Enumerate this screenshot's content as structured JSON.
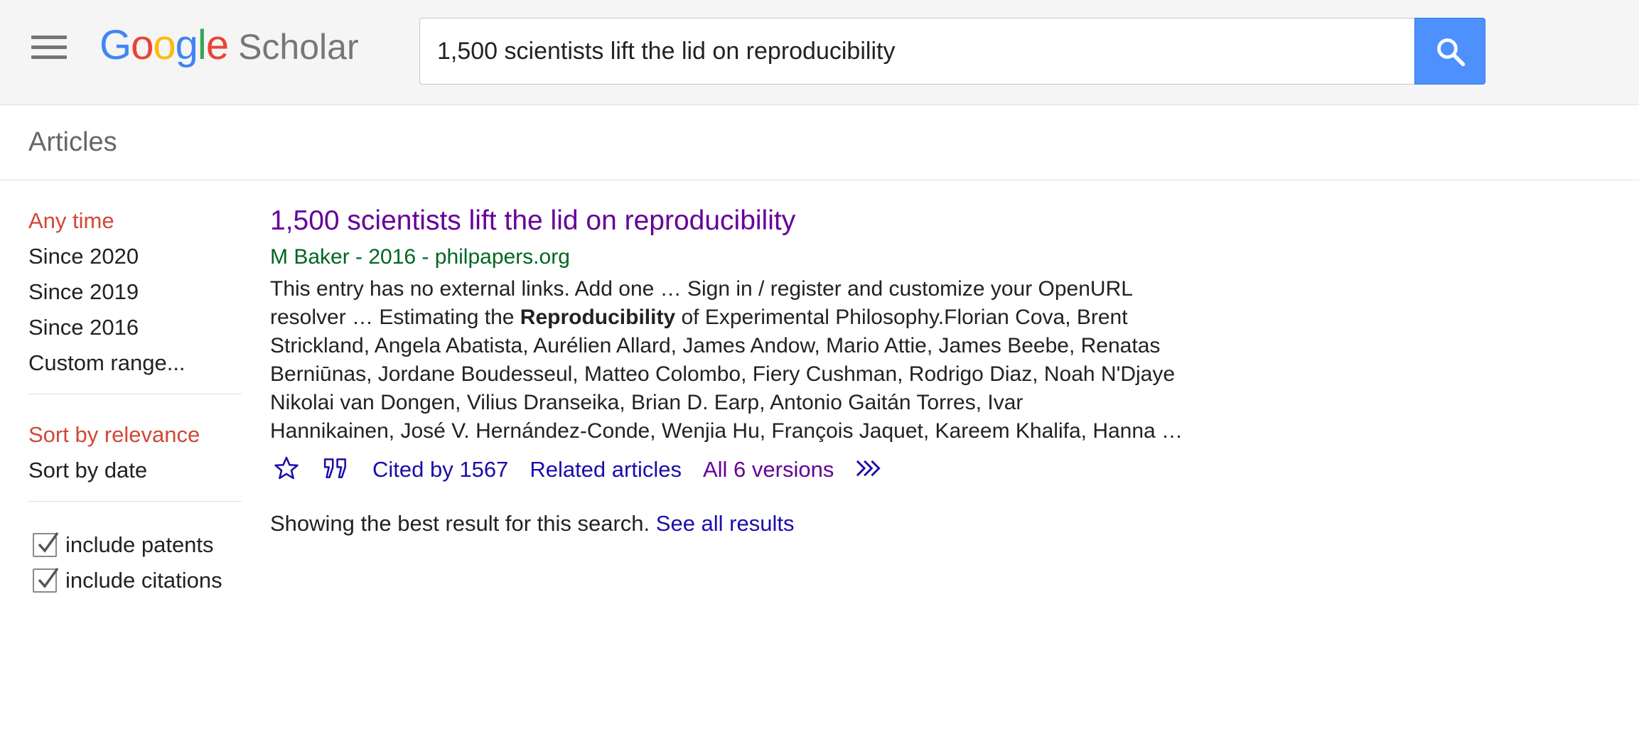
{
  "header": {
    "logo_letters": [
      "G",
      "o",
      "o",
      "g",
      "l",
      "e"
    ],
    "logo_colors": [
      "#4285F4",
      "#EA4335",
      "#FBBC05",
      "#4285F4",
      "#34A853",
      "#EA4335"
    ],
    "logo_product": "Scholar",
    "search_value": "1,500 scientists lift the lid on reproducibility",
    "search_button_color": "#4d90fe"
  },
  "section": {
    "label": "Articles"
  },
  "sidebar": {
    "time_filters": [
      {
        "label": "Any time",
        "active": true
      },
      {
        "label": "Since 2020",
        "active": false
      },
      {
        "label": "Since 2019",
        "active": false
      },
      {
        "label": "Since 2016",
        "active": false
      },
      {
        "label": "Custom range...",
        "active": false
      }
    ],
    "sort_options": [
      {
        "label": "Sort by relevance",
        "active": true
      },
      {
        "label": "Sort by date",
        "active": false
      }
    ],
    "checkboxes": [
      {
        "label": "include patents",
        "checked": true
      },
      {
        "label": "include citations",
        "checked": true
      }
    ],
    "active_color": "#d14836"
  },
  "result": {
    "title": "1,500 scientists lift the lid on reproducibility",
    "meta": "M Baker - 2016 - philpapers.org",
    "snippet_lines": [
      [
        "This entry has no external links. Add one … Sign in / register and customize your OpenURL"
      ],
      [
        "resolver … Estimating the ",
        "Reproducibility",
        " of Experimental Philosophy.Florian Cova, Brent"
      ],
      [
        "Strickland, Angela Abatista, Aurélien Allard, James Andow, Mario Attie, James Beebe, Renatas"
      ],
      [
        "Berniūnas, Jordane Boudesseul, Matteo Colombo, Fiery Cushman, Rodrigo Diaz, Noah N'Djaye"
      ],
      [
        "Nikolai van Dongen, Vilius Dranseika, Brian D. Earp, Antonio Gaitán Torres, Ivar"
      ],
      [
        "Hannikainen, José V. Hernández-Conde, Wenjia Hu, François Jaquet, Kareem Khalifa, Hanna …"
      ]
    ],
    "actions": {
      "save_icon": "star-icon",
      "cite_icon": "quote-icon",
      "cited_by": "Cited by 1567",
      "related": "Related articles",
      "versions": "All 6 versions",
      "more_icon": "double-chevron-icon"
    },
    "title_color": "#660099",
    "meta_color": "#006621",
    "link_color": "#1a0dab"
  },
  "footer_note": {
    "text": "Showing the best result for this search. ",
    "link": "See all results"
  }
}
